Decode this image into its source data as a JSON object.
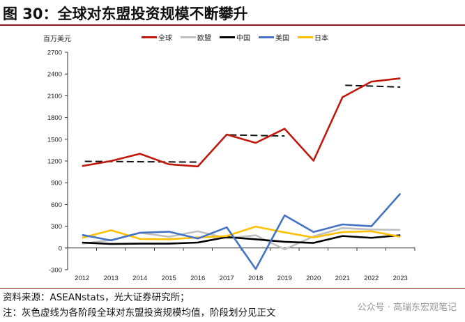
{
  "title": "图 30：全球对东盟投资规模不断攀升",
  "source": "资料来源：ASEANstats，光大证券研究所；",
  "note": "注：灰色虚线为各阶段全球对东盟投资规模均值，阶段划分见正文",
  "watermark": "公众号 · 高瑞东宏观笔记",
  "chart_data": {
    "type": "line",
    "ylabel": "百万美元",
    "ylim": [
      -300,
      2700
    ],
    "yticks": [
      -300,
      0,
      300,
      600,
      900,
      1200,
      1500,
      1800,
      2100,
      2400,
      2700
    ],
    "x": [
      "2012",
      "2013",
      "2014",
      "2015",
      "2016",
      "2017",
      "2018",
      "2019",
      "2020",
      "2021",
      "2022",
      "2023"
    ],
    "legend_position": "top-center",
    "series": [
      {
        "name": "全球",
        "color": "#c0180c",
        "values": [
          1130,
          1200,
          1300,
          1155,
          1125,
          1565,
          1450,
          1645,
          1205,
          2080,
          2295,
          2340
        ]
      },
      {
        "name": "欧盟",
        "color": "#bfbfbf",
        "values": [
          60,
          110,
          210,
          155,
          230,
          135,
          175,
          -20,
          160,
          275,
          255,
          250
        ]
      },
      {
        "name": "中国",
        "color": "#000000",
        "values": [
          75,
          55,
          60,
          60,
          75,
          150,
          120,
          85,
          70,
          165,
          140,
          175
        ]
      },
      {
        "name": "美国",
        "color": "#4472c4",
        "values": [
          180,
          105,
          210,
          225,
          130,
          285,
          -290,
          450,
          220,
          325,
          300,
          750
        ]
      },
      {
        "name": "日本",
        "color": "#ffc000",
        "values": [
          140,
          245,
          125,
          120,
          145,
          165,
          295,
          215,
          145,
          220,
          230,
          155
        ]
      }
    ],
    "average_lines": [
      {
        "from": "2012",
        "to": "2016",
        "start": 1195,
        "end": 1185
      },
      {
        "from": "2017",
        "to": "2019",
        "start": 1560,
        "end": 1545
      },
      {
        "from": "2021",
        "to": "2023",
        "start": 2245,
        "end": 2220
      }
    ]
  }
}
